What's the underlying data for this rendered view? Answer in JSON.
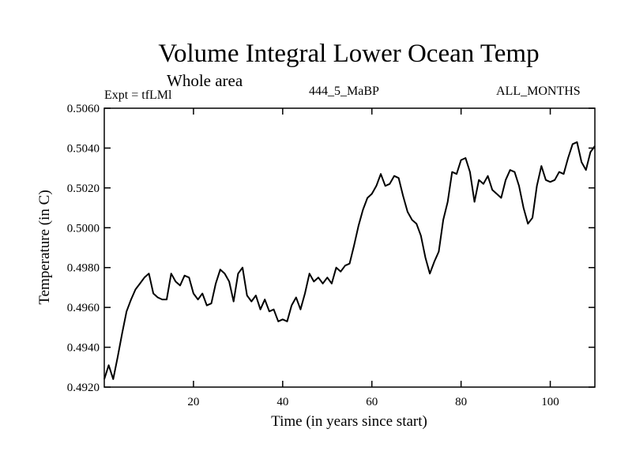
{
  "chart_data": {
    "type": "line",
    "title": "Volume Integral Lower Ocean Temp",
    "subtitle": "Whole area",
    "left_label": "Expt = tfLMl",
    "center_label": "444_5_MaBP",
    "right_label": "ALL_MONTHS",
    "xlabel": "Time (in years since start)",
    "ylabel": "Temperature (in C)",
    "xlim": [
      0,
      110
    ],
    "ylim": [
      0.492,
      0.506
    ],
    "xticks": [
      20,
      40,
      60,
      80,
      100
    ],
    "xtick_labels": [
      "20",
      "40",
      "60",
      "80",
      "100"
    ],
    "yticks": [
      0.492,
      0.494,
      0.496,
      0.498,
      0.5,
      0.502,
      0.504,
      0.506
    ],
    "ytick_labels": [
      "0.4920",
      "0.4940",
      "0.4960",
      "0.4980",
      "0.5000",
      "0.5020",
      "0.5040",
      "0.5060"
    ],
    "series": [
      {
        "name": "Volume Integral Lower Ocean Temp",
        "color": "#000000",
        "x": [
          0,
          1,
          2,
          3,
          4,
          5,
          6,
          7,
          8,
          9,
          10,
          11,
          12,
          13,
          14,
          15,
          16,
          17,
          18,
          19,
          20,
          21,
          22,
          23,
          24,
          25,
          26,
          27,
          28,
          29,
          30,
          31,
          32,
          33,
          34,
          35,
          36,
          37,
          38,
          39,
          40,
          41,
          42,
          43,
          44,
          45,
          46,
          47,
          48,
          49,
          50,
          51,
          52,
          53,
          54,
          55,
          56,
          57,
          58,
          59,
          60,
          61,
          62,
          63,
          64,
          65,
          66,
          67,
          68,
          69,
          70,
          71,
          72,
          73,
          74,
          75,
          76,
          77,
          78,
          79,
          80,
          81,
          82,
          83,
          84,
          85,
          86,
          87,
          88,
          89,
          90,
          91,
          92,
          93,
          94,
          95,
          96,
          97,
          98,
          99,
          100,
          101,
          102,
          103,
          104,
          105,
          106,
          107,
          108,
          109,
          110
        ],
        "values": [
          0.4924,
          0.4931,
          0.4924,
          0.4935,
          0.4947,
          0.4958,
          0.4964,
          0.4969,
          0.4972,
          0.4975,
          0.4977,
          0.4967,
          0.4965,
          0.4964,
          0.4964,
          0.4977,
          0.4973,
          0.4971,
          0.4976,
          0.4975,
          0.4967,
          0.4964,
          0.4967,
          0.4961,
          0.4962,
          0.4972,
          0.4979,
          0.4977,
          0.4973,
          0.4963,
          0.4977,
          0.498,
          0.4966,
          0.4963,
          0.4966,
          0.4959,
          0.4964,
          0.4958,
          0.4959,
          0.4953,
          0.4954,
          0.4953,
          0.4961,
          0.4965,
          0.4959,
          0.4967,
          0.4977,
          0.4973,
          0.4975,
          0.4972,
          0.4975,
          0.4972,
          0.498,
          0.4978,
          0.4981,
          0.4982,
          0.4991,
          0.5001,
          0.5009,
          0.5015,
          0.5017,
          0.5021,
          0.5027,
          0.5021,
          0.5022,
          0.5026,
          0.5025,
          0.5016,
          0.5008,
          0.5004,
          0.5002,
          0.4996,
          0.4985,
          0.4977,
          0.4983,
          0.4988,
          0.5004,
          0.5013,
          0.5028,
          0.5027,
          0.5034,
          0.5035,
          0.5028,
          0.5013,
          0.5024,
          0.5022,
          0.5026,
          0.5019,
          0.5017,
          0.5015,
          0.5024,
          0.5029,
          0.5028,
          0.5021,
          0.501,
          0.5002,
          0.5005,
          0.5021,
          0.5031,
          0.5024,
          0.5023,
          0.5024,
          0.5028,
          0.5027,
          0.5035,
          0.5042,
          0.5043,
          0.5033,
          0.5029,
          0.5038,
          0.5041
        ]
      }
    ]
  }
}
